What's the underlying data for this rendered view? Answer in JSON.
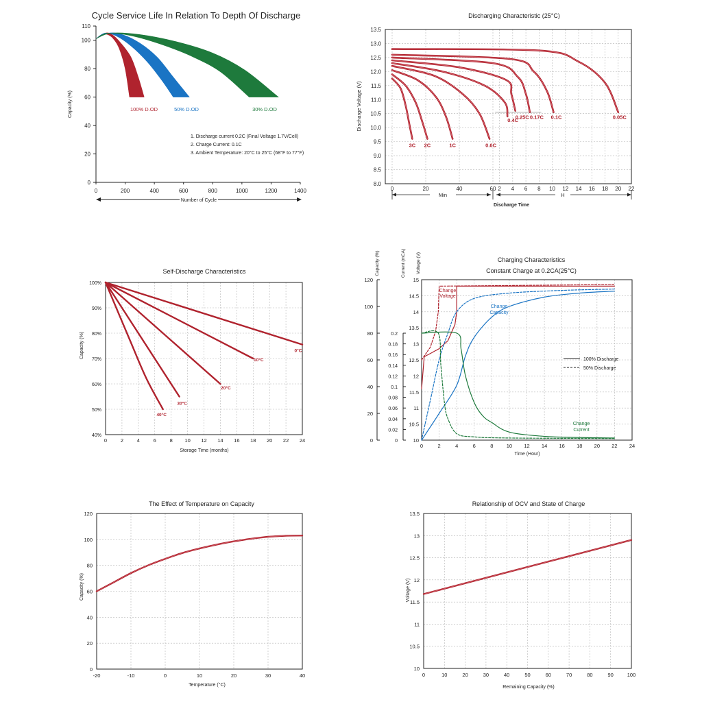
{
  "colors": {
    "red": "#b0232e",
    "blue": "#1a74c4",
    "green": "#1e7a3c",
    "axis": "#222222",
    "grid": "#b5b5b5"
  },
  "chart_data": [
    {
      "id": "cycle",
      "type": "area",
      "title": "Cycle Service Life In Relation To Depth Of Discharge",
      "xlabel": "Number of Cycle",
      "ylabel": "Capacity (%)",
      "xlim": [
        0,
        1400
      ],
      "ylim": [
        0,
        110
      ],
      "xticks": [
        0,
        200,
        400,
        600,
        800,
        1000,
        1200,
        1400
      ],
      "yticks": [
        0,
        20,
        40,
        60,
        80,
        100,
        110
      ],
      "grid": false,
      "notes": [
        "1.  Discharge current 0.2C (Final Voltage 1.7V/Cell)",
        "2.  Charge Current: 0.1C",
        "3.  Ambient Temperature: 20°C to 25°C (68°F to 77°F)"
      ],
      "series": [
        {
          "name": "100% D.OD",
          "color": "red",
          "lower": [
            [
              0,
              101
            ],
            [
              40,
              104
            ],
            [
              80,
              104
            ],
            [
              120,
              101
            ],
            [
              160,
              94
            ],
            [
              200,
              80
            ],
            [
              230,
              60
            ]
          ],
          "upper": [
            [
              0,
              101
            ],
            [
              60,
              105
            ],
            [
              110,
              104
            ],
            [
              170,
              98
            ],
            [
              240,
              88
            ],
            [
              290,
              74
            ],
            [
              330,
              60
            ]
          ]
        },
        {
          "name": "50% D.OD",
          "color": "blue",
          "lower": [
            [
              0,
              101
            ],
            [
              60,
              105
            ],
            [
              140,
              103
            ],
            [
              240,
              96
            ],
            [
              350,
              85
            ],
            [
              450,
              72
            ],
            [
              530,
              60
            ]
          ],
          "upper": [
            [
              0,
              101
            ],
            [
              80,
              105
            ],
            [
              180,
              104
            ],
            [
              300,
              98
            ],
            [
              420,
              88
            ],
            [
              530,
              74
            ],
            [
              640,
              60
            ]
          ]
        },
        {
          "name": "30% D.OD",
          "color": "green",
          "lower": [
            [
              0,
              101
            ],
            [
              80,
              105
            ],
            [
              250,
              103
            ],
            [
              450,
              97
            ],
            [
              650,
              89
            ],
            [
              850,
              78
            ],
            [
              1050,
              60
            ]
          ],
          "upper": [
            [
              0,
              101
            ],
            [
              100,
              105
            ],
            [
              300,
              104
            ],
            [
              550,
              99
            ],
            [
              800,
              91
            ],
            [
              1020,
              79
            ],
            [
              1250,
              60
            ]
          ]
        }
      ]
    },
    {
      "id": "discharge",
      "type": "line",
      "title": "Discharging Characteristic (25°C)",
      "xlabel": "Discharge Time",
      "ylabel": "Discharge Voltage (V)",
      "ylim": [
        8.0,
        13.5
      ],
      "yticks": [
        8.0,
        8.5,
        9.0,
        9.5,
        10.0,
        10.5,
        11.0,
        11.5,
        12.0,
        12.5,
        13.0,
        13.5
      ],
      "xticks": [
        "0",
        "20",
        "40",
        "60",
        "2",
        "4",
        "6",
        "8",
        "10",
        "12",
        "14",
        "16",
        "18",
        "20",
        "22"
      ],
      "min_label": "Min",
      "hour_label": "H",
      "grid": true,
      "series": [
        {
          "name": "3C",
          "points": [
            [
              0,
              11.75
            ],
            [
              5,
              11.4
            ],
            [
              8,
              10.8
            ],
            [
              10,
              10.2
            ],
            [
              12,
              9.6
            ]
          ]
        },
        {
          "name": "2C",
          "points": [
            [
              0,
              11.9
            ],
            [
              8,
              11.5
            ],
            [
              14,
              10.9
            ],
            [
              18,
              10.2
            ],
            [
              21,
              9.6
            ]
          ]
        },
        {
          "name": "1C",
          "points": [
            [
              0,
              12.05
            ],
            [
              15,
              11.7
            ],
            [
              26,
              11.1
            ],
            [
              32,
              10.4
            ],
            [
              36,
              9.6
            ]
          ]
        },
        {
          "name": "0.6C",
          "points": [
            [
              0,
              12.2
            ],
            [
              25,
              11.85
            ],
            [
              42,
              11.2
            ],
            [
              52,
              10.5
            ],
            [
              58,
              9.6
            ]
          ]
        },
        {
          "name": "0.4C",
          "points": [
            [
              0,
              12.3
            ],
            [
              30,
              12.0
            ],
            [
              55,
              11.5
            ],
            [
              70,
              10.9
            ],
            [
              80,
              10.4
            ]
          ]
        },
        {
          "name": "0.25C",
          "points": [
            [
              0,
              12.4
            ],
            [
              40,
              12.15
            ],
            [
              75,
              11.7
            ],
            [
              95,
              11.2
            ],
            [
              110,
              10.6
            ]
          ]
        },
        {
          "name": "0.17C",
          "points": [
            [
              0,
              12.5
            ],
            [
              60,
              12.3
            ],
            [
              120,
              11.8
            ],
            [
              150,
              11.2
            ],
            [
              165,
              10.55
            ]
          ]
        },
        {
          "name": "0.1C",
          "points": [
            [
              0,
              12.6
            ],
            [
              90,
              12.45
            ],
            [
              180,
              12.0
            ],
            [
              230,
              11.3
            ],
            [
              255,
              10.55
            ]
          ]
        },
        {
          "name": "0.05C",
          "points": [
            [
              0,
              12.8
            ],
            [
              200,
              12.75
            ],
            [
              350,
              12.35
            ],
            [
              450,
              11.6
            ],
            [
              500,
              10.55
            ]
          ]
        }
      ],
      "cutoff": 10.55
    },
    {
      "id": "selfdischarge",
      "type": "line",
      "title": "Self-Discharge Characteristics",
      "xlabel": "Storage Time (months)",
      "ylabel": "Capacity (%)",
      "xlim": [
        0,
        24
      ],
      "ylim": [
        40,
        100
      ],
      "xticks": [
        0,
        2,
        4,
        6,
        8,
        10,
        12,
        14,
        16,
        18,
        20,
        22,
        24
      ],
      "yticks": [
        "40%",
        "50%",
        "60%",
        "70%",
        "80%",
        "90%",
        "100%"
      ],
      "grid": true,
      "series": [
        {
          "name": "0°C",
          "points": [
            [
              0,
              100
            ],
            [
              24,
              75.5
            ]
          ]
        },
        {
          "name": "10°C",
          "points": [
            [
              0,
              100
            ],
            [
              18,
              70
            ]
          ]
        },
        {
          "name": "20°C",
          "points": [
            [
              0,
              100
            ],
            [
              14,
              60
            ]
          ]
        },
        {
          "name": "30°C",
          "points": [
            [
              0,
              100
            ],
            [
              9,
              55
            ]
          ]
        },
        {
          "name": "40°C",
          "points": [
            [
              0,
              100
            ],
            [
              3,
              77
            ],
            [
              5,
              62
            ],
            [
              7,
              50
            ]
          ]
        }
      ]
    },
    {
      "id": "charging",
      "type": "line",
      "title": "Charging Characteristics",
      "subtitle": "Constant Charge at 0.2CA(25°C)",
      "xlabel": "Time (Hour)",
      "axis_titles": [
        "Capacity (%)",
        "Current (mCA)",
        "Voltage (V)"
      ],
      "xlim": [
        0,
        24
      ],
      "xticks": [
        0,
        2,
        4,
        6,
        8,
        10,
        12,
        14,
        16,
        18,
        20,
        22,
        24
      ],
      "capacity_ticks": [
        0,
        20,
        40,
        60,
        80,
        100,
        120
      ],
      "current_ticks": [
        0,
        0.02,
        0.04,
        0.06,
        0.08,
        0.1,
        0.12,
        0.14,
        0.16,
        0.18,
        0.2
      ],
      "voltage_ticks": [
        10,
        10.5,
        11,
        11.5,
        12,
        12.5,
        13,
        13.5,
        14,
        14.5,
        15
      ],
      "legend": [
        "100% Discharge",
        "50% Discharge"
      ],
      "grid": true,
      "annotations": [
        "Change Voltage",
        "Change Capacity",
        "Change Current"
      ],
      "series": [
        {
          "name": "Change Voltage",
          "color": "red",
          "axis": "voltage",
          "solid": [
            [
              0,
              11.6
            ],
            [
              0.3,
              12.6
            ],
            [
              1,
              12.7
            ],
            [
              2,
              12.85
            ],
            [
              3,
              13.1
            ],
            [
              3.8,
              13.6
            ],
            [
              4,
              14.0
            ],
            [
              4,
              14.8
            ],
            [
              22,
              14.8
            ]
          ],
          "dashed": [
            [
              0,
              12.5
            ],
            [
              0.5,
              12.7
            ],
            [
              1,
              12.9
            ],
            [
              1.6,
              13.4
            ],
            [
              1.9,
              14.0
            ],
            [
              2,
              14.8
            ],
            [
              22,
              14.85
            ]
          ]
        },
        {
          "name": "Change Capacity",
          "color": "blue",
          "axis": "capacity",
          "solid": [
            [
              0,
              0
            ],
            [
              2,
              20
            ],
            [
              4,
              41
            ],
            [
              5,
              63
            ],
            [
              6,
              77
            ],
            [
              8,
              92
            ],
            [
              10,
              100
            ],
            [
              14,
              107
            ],
            [
              18,
              110
            ],
            [
              22,
              111.5
            ]
          ],
          "dashed": [
            [
              0,
              0
            ],
            [
              1,
              30
            ],
            [
              2,
              60
            ],
            [
              3,
              80
            ],
            [
              4,
              96
            ],
            [
              6,
              106
            ],
            [
              10,
              110
            ],
            [
              16,
              112
            ],
            [
              22,
              113
            ]
          ]
        },
        {
          "name": "Change Current",
          "color": "green",
          "axis": "current",
          "solid": [
            [
              0,
              0.2
            ],
            [
              4,
              0.2
            ],
            [
              4.5,
              0.17
            ],
            [
              5,
              0.12
            ],
            [
              6,
              0.07
            ],
            [
              7,
              0.045
            ],
            [
              8,
              0.033
            ],
            [
              10,
              0.015
            ],
            [
              14,
              0.007
            ],
            [
              18,
              0.005
            ],
            [
              22,
              0.004
            ]
          ],
          "dashed": [
            [
              0,
              0.2
            ],
            [
              1.9,
              0.2
            ],
            [
              2.2,
              0.14
            ],
            [
              2.6,
              0.07
            ],
            [
              3,
              0.04
            ],
            [
              4,
              0.012
            ],
            [
              6,
              0.006
            ],
            [
              10,
              0.004
            ],
            [
              22,
              0.003
            ]
          ]
        }
      ]
    },
    {
      "id": "temperature",
      "type": "line",
      "title": "The Effect of Temperature on Capacity",
      "xlabel": "Temperature (°C)",
      "ylabel": "Capacity (%)",
      "xlim": [
        -20,
        40
      ],
      "ylim": [
        0,
        120
      ],
      "xticks": [
        -20,
        -10,
        0,
        10,
        20,
        30,
        40
      ],
      "yticks": [
        0,
        20,
        40,
        60,
        80,
        100,
        120
      ],
      "grid": true,
      "series": [
        {
          "name": "",
          "points": [
            [
              -20,
              60
            ],
            [
              -15,
              67
            ],
            [
              -10,
              74
            ],
            [
              -5,
              80
            ],
            [
              0,
              85
            ],
            [
              5,
              89.5
            ],
            [
              10,
              93
            ],
            [
              15,
              96
            ],
            [
              20,
              98.5
            ],
            [
              25,
              100.5
            ],
            [
              30,
              102
            ],
            [
              35,
              102.8
            ],
            [
              40,
              103
            ]
          ]
        }
      ]
    },
    {
      "id": "ocv",
      "type": "line",
      "title": "Relationship of OCV and State of Charge",
      "xlabel": "Remaining Capacity (%)",
      "ylabel": "Voltage (V)",
      "xlim": [
        0,
        100
      ],
      "ylim": [
        10,
        13.5
      ],
      "xticks": [
        0,
        10,
        20,
        30,
        40,
        50,
        60,
        70,
        80,
        90,
        100
      ],
      "yticks": [
        10,
        10.5,
        11,
        11.5,
        12,
        12.5,
        13,
        13.5
      ],
      "grid": true,
      "series": [
        {
          "name": "",
          "points": [
            [
              0,
              11.68
            ],
            [
              100,
              12.9
            ]
          ]
        }
      ]
    }
  ]
}
